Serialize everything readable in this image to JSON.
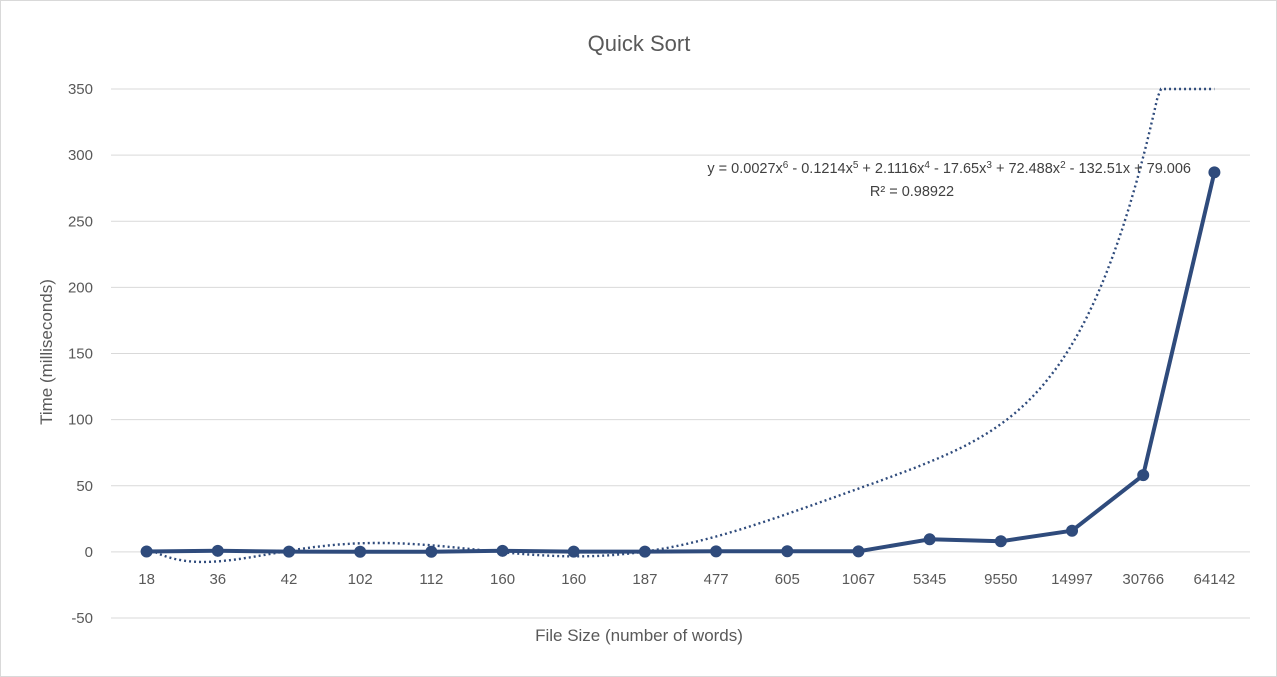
{
  "chart_data": {
    "type": "line",
    "title": "Quick Sort",
    "xlabel": "File Size (number of words)",
    "ylabel": "Time (milliseconds)",
    "categories": [
      "18",
      "36",
      "42",
      "102",
      "112",
      "160",
      "160",
      "187",
      "477",
      "605",
      "1067",
      "5345",
      "9550",
      "14997",
      "30766",
      "64142"
    ],
    "series": [
      {
        "values": [
          0.3,
          0.8,
          0.2,
          0.1,
          0.1,
          0.8,
          0.2,
          0.2,
          0.4,
          0.5,
          0.4,
          9.5,
          8,
          16,
          58,
          287
        ]
      }
    ],
    "ylim": [
      -50,
      350
    ],
    "yticks": [
      -50,
      0,
      50,
      100,
      150,
      200,
      250,
      300,
      350
    ],
    "grid": true,
    "legend": "none",
    "trendline": {
      "type": "polynomial",
      "order": 6,
      "equation": {
        "prefix": "y = 0.0027x",
        "terms": [
          {
            "exp": "6",
            "text": " - 0.1214x"
          },
          {
            "exp": "5",
            "text": " + 2.1116x"
          },
          {
            "exp": "4",
            "text": " - 17.65x"
          },
          {
            "exp": "3",
            "text": " + 72.488x"
          },
          {
            "exp": "2",
            "text": " - 132.51x + 79.006"
          }
        ]
      },
      "r_squared": "R² = 0.98922",
      "coefficients": [
        0.0027,
        -0.1214,
        2.1116,
        -17.65,
        72.488,
        -132.51,
        79.006
      ]
    },
    "colors": {
      "series": "#2f4b7c",
      "grid": "#d9d9d9",
      "text": "#595959"
    }
  }
}
